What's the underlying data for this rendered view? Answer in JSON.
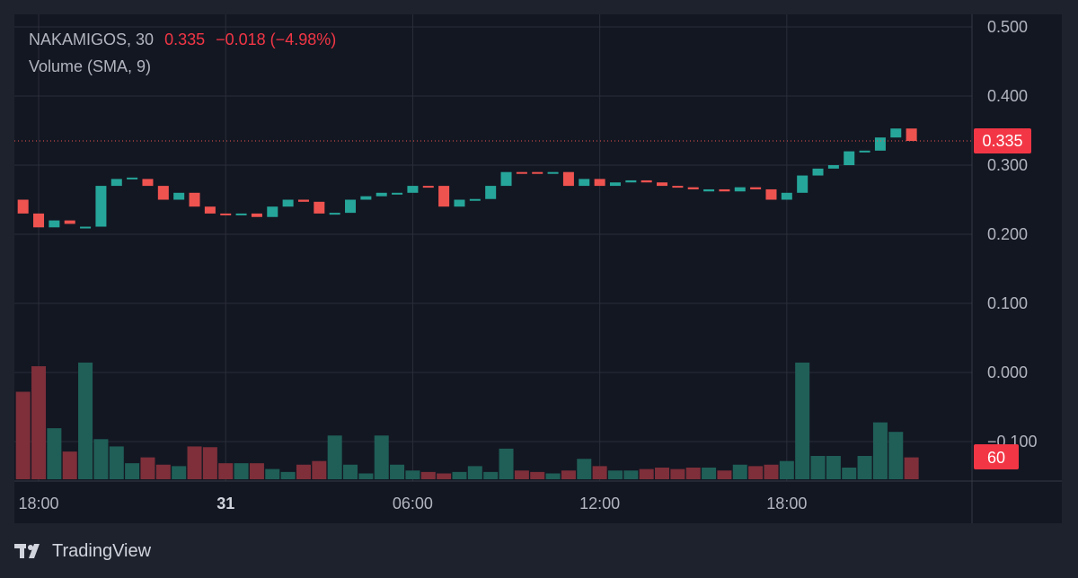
{
  "legend": {
    "symbol": "NAKAMIGOS, 30",
    "last": "0.335",
    "change": "−0.018 (−4.98%)",
    "indicator": "Volume (SMA, 9)"
  },
  "price_badge": "0.335",
  "volume_badge": "60",
  "brand": {
    "name": "TradingView"
  },
  "colors": {
    "up": "#26a69a",
    "down": "#ef5350",
    "up_volume": "#1f5f58",
    "down_volume": "#7e2f3a",
    "grid": "#2a2e39",
    "text": "#b2b5be",
    "badge": "#f23645"
  },
  "chart_data": {
    "type": "candlestick",
    "interval": "30",
    "y_ticks": [
      "0.500",
      "0.400",
      "0.300",
      "0.200",
      "0.100",
      "0.000",
      "−0.100"
    ],
    "x_ticks": [
      {
        "label": "18:00",
        "index": 1.5,
        "bold": false
      },
      {
        "label": "31",
        "index": 13.5,
        "bold": true
      },
      {
        "label": "06:00",
        "index": 25.5,
        "bold": false
      },
      {
        "label": "12:00",
        "index": 37.5,
        "bold": false
      },
      {
        "label": "18:00",
        "index": 49.5,
        "bold": false
      }
    ],
    "last_price": 0.335,
    "candles": [
      [
        0.25,
        0.23
      ],
      [
        0.23,
        0.21
      ],
      [
        0.21,
        0.22
      ],
      [
        0.22,
        0.215
      ],
      [
        0.21,
        0.211
      ],
      [
        0.211,
        0.27
      ],
      [
        0.27,
        0.28
      ],
      [
        0.28,
        0.282
      ],
      [
        0.28,
        0.27
      ],
      [
        0.27,
        0.25
      ],
      [
        0.25,
        0.26
      ],
      [
        0.26,
        0.24
      ],
      [
        0.24,
        0.23
      ],
      [
        0.23,
        0.229
      ],
      [
        0.229,
        0.23
      ],
      [
        0.23,
        0.225
      ],
      [
        0.225,
        0.24
      ],
      [
        0.24,
        0.25
      ],
      [
        0.25,
        0.247
      ],
      [
        0.247,
        0.23
      ],
      [
        0.23,
        0.231
      ],
      [
        0.231,
        0.25
      ],
      [
        0.25,
        0.255
      ],
      [
        0.255,
        0.26
      ],
      [
        0.26,
        0.26
      ],
      [
        0.26,
        0.27
      ],
      [
        0.27,
        0.268
      ],
      [
        0.27,
        0.24
      ],
      [
        0.24,
        0.25
      ],
      [
        0.25,
        0.251
      ],
      [
        0.251,
        0.27
      ],
      [
        0.27,
        0.29
      ],
      [
        0.29,
        0.289
      ],
      [
        0.29,
        0.289
      ],
      [
        0.289,
        0.29
      ],
      [
        0.29,
        0.27
      ],
      [
        0.27,
        0.28
      ],
      [
        0.28,
        0.27
      ],
      [
        0.27,
        0.275
      ],
      [
        0.275,
        0.278
      ],
      [
        0.278,
        0.275
      ],
      [
        0.275,
        0.27
      ],
      [
        0.27,
        0.268
      ],
      [
        0.268,
        0.265
      ],
      [
        0.262,
        0.265
      ],
      [
        0.265,
        0.262
      ],
      [
        0.262,
        0.268
      ],
      [
        0.268,
        0.265
      ],
      [
        0.265,
        0.25
      ],
      [
        0.25,
        0.26
      ],
      [
        0.26,
        0.285
      ],
      [
        0.285,
        0.295
      ],
      [
        0.295,
        0.3
      ],
      [
        0.3,
        0.32
      ],
      [
        0.32,
        0.321
      ],
      [
        0.321,
        0.34
      ],
      [
        0.34,
        0.353
      ],
      [
        0.353,
        0.335
      ]
    ],
    "volume_scale_max": 160,
    "volumes": [
      120,
      155,
      70,
      38,
      165,
      55,
      45,
      22,
      30,
      20,
      18,
      45,
      44,
      22,
      22,
      22,
      14,
      10,
      20,
      25,
      60,
      20,
      8,
      60,
      20,
      12,
      10,
      8,
      10,
      18,
      10,
      42,
      12,
      10,
      8,
      12,
      28,
      18,
      12,
      12,
      14,
      16,
      14,
      16,
      16,
      12,
      20,
      18,
      20,
      25,
      165,
      32,
      32,
      16,
      32,
      78,
      65,
      30
    ]
  }
}
